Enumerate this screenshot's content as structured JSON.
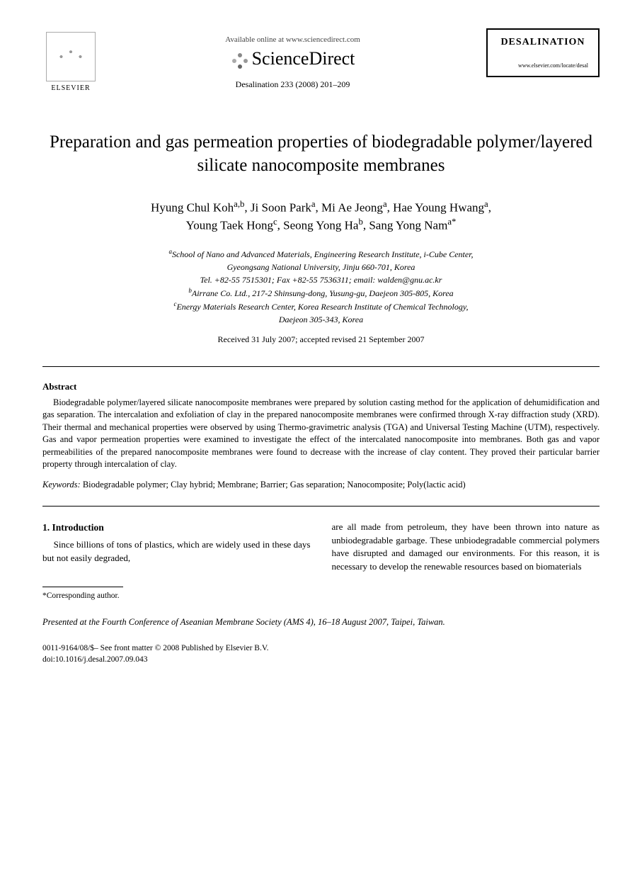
{
  "header": {
    "publisher": "ELSEVIER",
    "available_text": "Available online at www.sciencedirect.com",
    "platform": "ScienceDirect",
    "journal_name": "DESALINATION",
    "journal_url": "www.elsevier.com/locate/desal",
    "citation": "Desalination 233 (2008) 201–209"
  },
  "title": "Preparation and gas permeation properties of biodegradable polymer/layered silicate nanocomposite membranes",
  "authors_line1": "Hyung Chul Koh",
  "authors_sup1": "a,b",
  "authors_line2": ", Ji Soon Park",
  "authors_sup2": "a",
  "authors_line3": ", Mi Ae Jeong",
  "authors_sup3": "a",
  "authors_line4": ", Hae Young Hwang",
  "authors_sup4": "a",
  "authors_line5": ",",
  "authors_line6": "Young Taek Hong",
  "authors_sup6": "c",
  "authors_line7": ", Seong Yong Ha",
  "authors_sup7": "b",
  "authors_line8": ", Sang Yong Nam",
  "authors_sup8": "a*",
  "affiliations": {
    "a1": "School of Nano and Advanced Materials, Engineering Research Institute, i-Cube Center,",
    "a2": "Gyeongsang National University, Jinju 660-701, Korea",
    "a3": "Tel. +82-55 7515301; Fax +82-55 7536311; email: walden@gnu.ac.kr",
    "b": "Airrane Co. Ltd., 217-2 Shinsung-dong, Yusung-gu, Daejeon 305-805, Korea",
    "c1": "Energy Materials Research Center, Korea Research Institute of Chemical Technology,",
    "c2": "Daejeon 305-343, Korea"
  },
  "dates": "Received 31 July 2007; accepted revised 21 September 2007",
  "abstract": {
    "heading": "Abstract",
    "text": "Biodegradable polymer/layered silicate nanocomposite membranes were prepared by solution casting method for the application of dehumidification and gas separation. The intercalation and exfoliation of clay in the prepared nanocomposite membranes were confirmed through X-ray diffraction study (XRD). Their thermal and mechanical properties were observed by using Thermo-gravimetric analysis (TGA) and Universal Testing Machine (UTM), respectively. Gas and vapor permeation properties were examined to investigate the effect of the intercalated nanocomposite into membranes. Both gas and vapor permeabilities of the prepared nanocomposite membranes were found to decrease with the increase of clay content. They proved their particular barrier property through intercalation of clay."
  },
  "keywords": {
    "label": "Keywords:",
    "text": "Biodegradable polymer; Clay hybrid; Membrane; Barrier; Gas separation; Nanocomposite; Poly(lactic acid)"
  },
  "introduction": {
    "heading": "1. Introduction",
    "col1": "Since billions of tons of plastics, which are widely used in these days but not easily degraded,",
    "col2": "are all made from petroleum, they have been thrown into nature as unbiodegradable garbage. These unbiodegradable commercial polymers have disrupted and damaged our environments. For this reason, it is necessary to develop the renewable resources based on biomaterials"
  },
  "corresponding": "*Corresponding author.",
  "conference": "Presented at the Fourth Conference of Aseanian Membrane Society (AMS 4), 16–18 August 2007, Taipei, Taiwan.",
  "footer": {
    "line1": "0011-9164/08/$– See front matter © 2008 Published by Elsevier B.V.",
    "line2": "doi:10.1016/j.desal.2007.09.043"
  }
}
